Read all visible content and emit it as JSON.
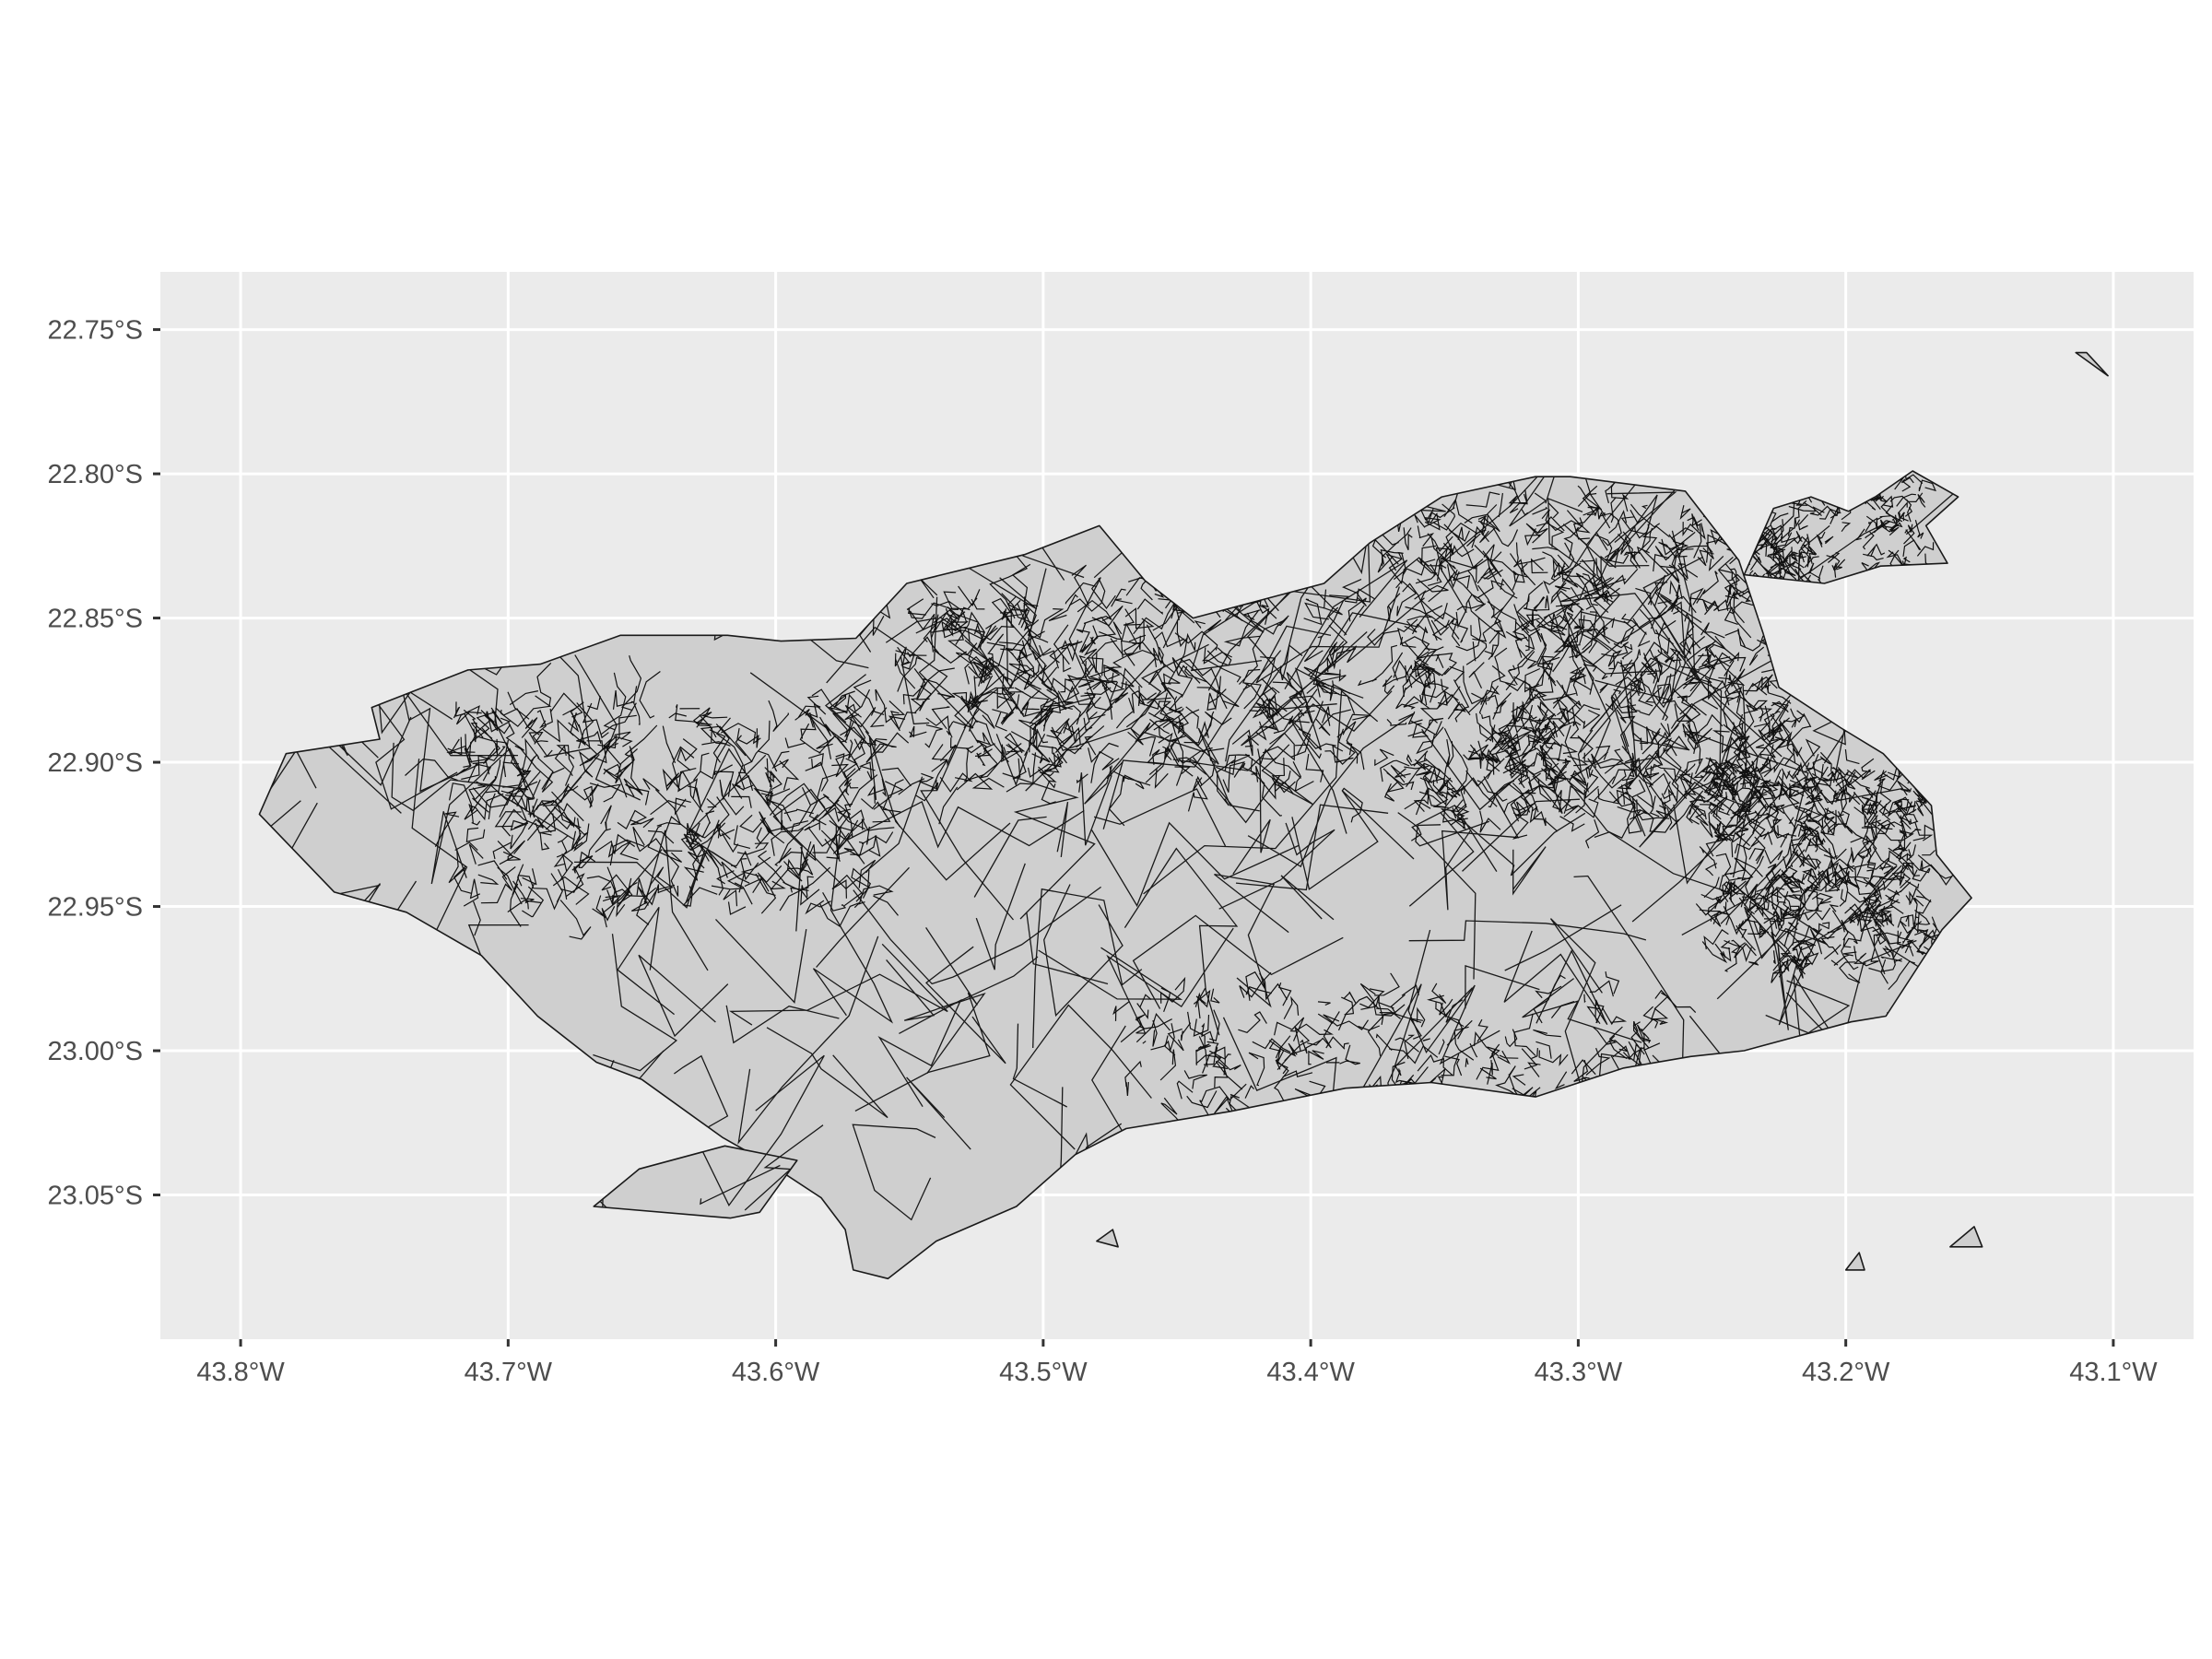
{
  "chart_data": {
    "type": "map",
    "projection": "longitude/latitude (WGS84)",
    "xlim": [
      -43.83,
      -43.07
    ],
    "ylim": [
      -23.1,
      -22.73
    ],
    "grid": true,
    "background": "#ebebeb",
    "land_fill": "#cfcfcf",
    "border_color": "#1a1a1a",
    "x_ticks": [
      {
        "value": -43.8,
        "label": "43.8°W"
      },
      {
        "value": -43.7,
        "label": "43.7°W"
      },
      {
        "value": -43.6,
        "label": "43.6°W"
      },
      {
        "value": -43.5,
        "label": "43.5°W"
      },
      {
        "value": -43.4,
        "label": "43.4°W"
      },
      {
        "value": -43.3,
        "label": "43.3°W"
      },
      {
        "value": -43.2,
        "label": "43.2°W"
      },
      {
        "value": -43.1,
        "label": "43.1°W"
      }
    ],
    "y_ticks": [
      {
        "value": -22.75,
        "label": "22.75°S"
      },
      {
        "value": -22.8,
        "label": "22.80°S"
      },
      {
        "value": -22.85,
        "label": "22.85°S"
      },
      {
        "value": -22.9,
        "label": "22.90°S"
      },
      {
        "value": -22.95,
        "label": "22.95°S"
      },
      {
        "value": -23.0,
        "label": "23.00°S"
      },
      {
        "value": -23.05,
        "label": "23.05°S"
      }
    ],
    "outline": [
      [
        -43.793,
        -22.918
      ],
      [
        -43.783,
        -22.897
      ],
      [
        -43.748,
        -22.892
      ],
      [
        -43.751,
        -22.881
      ],
      [
        -43.715,
        -22.868
      ],
      [
        -43.688,
        -22.866
      ],
      [
        -43.658,
        -22.856
      ],
      [
        -43.618,
        -22.856
      ],
      [
        -43.598,
        -22.858
      ],
      [
        -43.57,
        -22.857
      ],
      [
        -43.551,
        -22.838
      ],
      [
        -43.507,
        -22.828
      ],
      [
        -43.479,
        -22.818
      ],
      [
        -43.462,
        -22.837
      ],
      [
        -43.444,
        -22.85
      ],
      [
        -43.395,
        -22.838
      ],
      [
        -43.378,
        -22.824
      ],
      [
        -43.351,
        -22.808
      ],
      [
        -43.316,
        -22.801
      ],
      [
        -43.303,
        -22.801
      ],
      [
        -43.26,
        -22.806
      ],
      [
        -43.24,
        -22.83
      ],
      [
        -43.231,
        -22.855
      ],
      [
        -43.225,
        -22.874
      ],
      [
        -43.202,
        -22.888
      ],
      [
        -43.186,
        -22.897
      ],
      [
        -43.168,
        -22.915
      ],
      [
        -43.166,
        -22.932
      ],
      [
        -43.153,
        -22.947
      ],
      [
        -43.164,
        -22.958
      ],
      [
        -43.185,
        -22.988
      ],
      [
        -43.198,
        -22.99
      ],
      [
        -43.238,
        -23.0
      ],
      [
        -43.258,
        -23.002
      ],
      [
        -43.283,
        -23.006
      ],
      [
        -43.316,
        -23.016
      ],
      [
        -43.355,
        -23.011
      ],
      [
        -43.387,
        -23.013
      ],
      [
        -43.43,
        -23.021
      ],
      [
        -43.469,
        -23.027
      ],
      [
        -43.488,
        -23.036
      ],
      [
        -43.51,
        -23.054
      ],
      [
        -43.54,
        -23.066
      ],
      [
        -43.558,
        -23.079
      ],
      [
        -43.571,
        -23.076
      ],
      [
        -43.574,
        -23.062
      ],
      [
        -43.583,
        -23.051
      ],
      [
        -43.601,
        -23.04
      ],
      [
        -43.62,
        -23.03
      ],
      [
        -43.65,
        -23.01
      ],
      [
        -43.667,
        -23.004
      ],
      [
        -43.689,
        -22.988
      ],
      [
        -43.71,
        -22.967
      ],
      [
        -43.738,
        -22.952
      ],
      [
        -43.765,
        -22.945
      ],
      [
        -43.793,
        -22.918
      ]
    ],
    "islands": [
      [
        [
          -43.668,
          -23.054
        ],
        [
          -43.651,
          -23.041
        ],
        [
          -43.619,
          -23.033
        ],
        [
          -43.592,
          -23.038
        ],
        [
          -43.606,
          -23.056
        ],
        [
          -43.617,
          -23.058
        ],
        [
          -43.668,
          -23.054
        ]
      ],
      [
        [
          -43.238,
          -22.835
        ],
        [
          -43.227,
          -22.812
        ],
        [
          -43.213,
          -22.808
        ],
        [
          -43.199,
          -22.813
        ],
        [
          -43.189,
          -22.808
        ],
        [
          -43.175,
          -22.799
        ],
        [
          -43.158,
          -22.808
        ],
        [
          -43.17,
          -22.818
        ],
        [
          -43.162,
          -22.831
        ],
        [
          -43.187,
          -22.832
        ],
        [
          -43.208,
          -22.838
        ],
        [
          -43.238,
          -22.835
        ]
      ],
      [
        [
          -43.161,
          -23.068
        ],
        [
          -43.149,
          -23.068
        ],
        [
          -43.152,
          -23.061
        ],
        [
          -43.161,
          -23.068
        ]
      ],
      [
        [
          -43.2,
          -23.076
        ],
        [
          -43.193,
          -23.076
        ],
        [
          -43.195,
          -23.07
        ],
        [
          -43.2,
          -23.076
        ]
      ],
      [
        [
          -43.11,
          -22.758
        ],
        [
          -43.102,
          -22.766
        ],
        [
          -43.114,
          -22.758
        ],
        [
          -43.11,
          -22.758
        ]
      ],
      [
        [
          -43.48,
          -23.066
        ],
        [
          -43.472,
          -23.068
        ],
        [
          -43.474,
          -23.062
        ],
        [
          -43.48,
          -23.066
        ]
      ]
    ]
  }
}
